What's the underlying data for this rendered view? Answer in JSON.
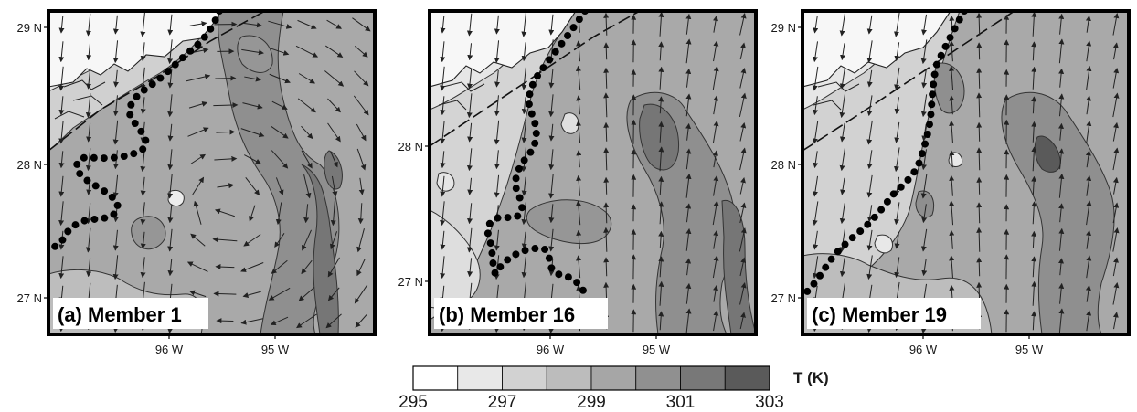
{
  "panels": [
    {
      "label": "(a) Member 1",
      "lat_ticks": [
        {
          "lat": 29,
          "label": "29 N"
        },
        {
          "lat": 28,
          "label": "28 N"
        },
        {
          "lat": 27,
          "label": "27 N"
        }
      ],
      "lon_ticks": [
        {
          "lon": -96,
          "label": "96 W"
        },
        {
          "lon": -95,
          "label": "95 W"
        }
      ]
    },
    {
      "label": "(b) Member 16",
      "lat_ticks": [
        {
          "lat": 28,
          "label": "28 N"
        },
        {
          "lat": 27,
          "label": "27 N"
        }
      ],
      "lon_ticks": [
        {
          "lon": -96,
          "label": "96 W"
        },
        {
          "lon": -95,
          "label": "95 W"
        }
      ]
    },
    {
      "label": "(c) Member 19",
      "lat_ticks": [
        {
          "lat": 29,
          "label": "29 N"
        },
        {
          "lat": 28,
          "label": "28 N"
        },
        {
          "lat": 27,
          "label": "27 N"
        }
      ],
      "lon_ticks": [
        {
          "lon": -96,
          "label": "96 W"
        },
        {
          "lon": -95,
          "label": "95 W"
        }
      ]
    }
  ],
  "colorbar": {
    "title": "T (K)",
    "min": 295,
    "max": 303,
    "tick_labels": [
      "295",
      "297",
      "299",
      "301",
      "303"
    ],
    "colors": [
      "#ffffff",
      "#e8e8e8",
      "#d2d2d2",
      "#bcbcbc",
      "#a6a6a6",
      "#909090",
      "#787878",
      "#5a5a5a"
    ]
  }
}
